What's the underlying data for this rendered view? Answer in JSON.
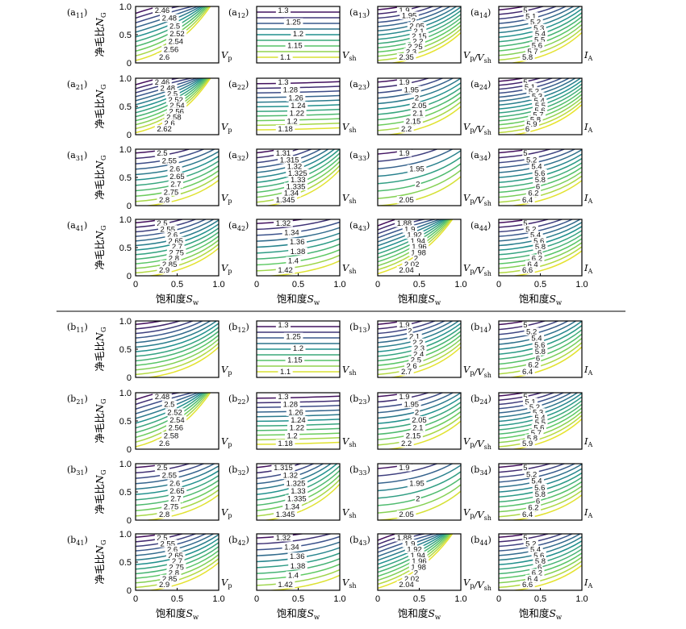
{
  "chart_data": {
    "type": "contour",
    "xlim": [
      0,
      1
    ],
    "ylim": [
      0,
      1
    ],
    "x_ticks": [
      "0",
      "0.5",
      "1.0"
    ],
    "y_ticks": [
      "0",
      "0.5",
      "1.0"
    ],
    "xlabel": "饱和度S_w",
    "ylabel": "净毛比N_G",
    "colormap": [
      "#440154",
      "#3b528b",
      "#21908d",
      "#5dc963",
      "#fde725"
    ],
    "sections": [
      {
        "id": "a",
        "panels": [
          {
            "row": 1,
            "col": 1,
            "label": "(a11)",
            "quantity": "Vp",
            "levels": [
              "2.46",
              "2.48",
              "2.5",
              "2.52",
              "2.54",
              "2.56",
              "2.6"
            ],
            "slope": 0.5,
            "style": "fan"
          },
          {
            "row": 1,
            "col": 2,
            "label": "(a12)",
            "quantity": "Vsh",
            "levels": [
              "1.3",
              "1.25",
              "1.2",
              "1.15",
              "1.1"
            ],
            "slope": 0.0,
            "style": "flat"
          },
          {
            "row": 1,
            "col": 3,
            "label": "(a13)",
            "quantity": "Vp/Vsh",
            "levels": [
              "1.9",
              "1.95",
              "2",
              "2.05",
              "2.1",
              "2.15",
              "2.2",
              "2.25",
              "2.3",
              "2.35"
            ],
            "slope": 0.6,
            "style": "curve"
          },
          {
            "row": 1,
            "col": 4,
            "label": "(a14)",
            "quantity": "IA",
            "levels": [
              "5",
              "5.1",
              "5.2",
              "5.3",
              "5.4",
              "5.5",
              "5.6",
              "5.7",
              "5.8"
            ],
            "slope": 0.6,
            "style": "curve"
          },
          {
            "row": 2,
            "col": 1,
            "label": "(a21)",
            "quantity": "Vp",
            "levels": [
              "2.46",
              "2.48",
              "2.5",
              "2.52",
              "2.54",
              "2.56",
              "2.58",
              "2.6",
              "2.62"
            ],
            "slope": 0.45,
            "style": "fan"
          },
          {
            "row": 2,
            "col": 2,
            "label": "(a22)",
            "quantity": "Vsh",
            "levels": [
              "1.3",
              "1.28",
              "1.26",
              "1.24",
              "1.22",
              "1.2",
              "1.18"
            ],
            "slope": 0.15,
            "style": "flat"
          },
          {
            "row": 2,
            "col": 3,
            "label": "(a23)",
            "quantity": "Vp/Vsh",
            "levels": [
              "1.9",
              "1.95",
              "2",
              "2.05",
              "2.1",
              "2.15",
              "2.2"
            ],
            "slope": 0.55,
            "style": "curve"
          },
          {
            "row": 2,
            "col": 4,
            "label": "(a24)",
            "quantity": "IA",
            "levels": [
              "5",
              "5.1",
              "5.2",
              "5.3",
              "5.4",
              "5.5",
              "5.6",
              "5.7",
              "5.8",
              "5.9",
              "6"
            ],
            "slope": 0.6,
            "style": "curve"
          },
          {
            "row": 3,
            "col": 1,
            "label": "(a31)",
            "quantity": "Vp",
            "levels": [
              "2.5",
              "2.55",
              "2.6",
              "2.65",
              "2.7",
              "2.75",
              "2.8"
            ],
            "slope": 0.5,
            "style": "curve"
          },
          {
            "row": 3,
            "col": 2,
            "label": "(a32)",
            "quantity": "Vsh",
            "levels": [
              "1.31",
              "1.315",
              "1.32",
              "1.325",
              "1.33",
              "1.335",
              "1.34",
              "1.345"
            ],
            "slope": 0.7,
            "style": "curve"
          },
          {
            "row": 3,
            "col": 3,
            "label": "(a33)",
            "quantity": "Vp/Vsh",
            "levels": [
              "1.9",
              "1.95",
              "2",
              "2.05"
            ],
            "slope": 0.55,
            "style": "curve"
          },
          {
            "row": 3,
            "col": 4,
            "label": "(a34)",
            "quantity": "IA",
            "levels": [
              "5",
              "5.2",
              "5.4",
              "5.6",
              "5.8",
              "6",
              "6.2",
              "6.4"
            ],
            "slope": 0.5,
            "style": "curve"
          },
          {
            "row": 4,
            "col": 1,
            "label": "(a41)",
            "quantity": "Vp",
            "levels": [
              "2.5",
              "2.55",
              "2.6",
              "2.65",
              "2.7",
              "2.75",
              "2.8",
              "2.85",
              "2.9"
            ],
            "slope": 0.55,
            "style": "curve"
          },
          {
            "row": 4,
            "col": 2,
            "label": "(a42)",
            "quantity": "Vsh",
            "levels": [
              "1.32",
              "1.34",
              "1.36",
              "1.38",
              "1.4",
              "1.42"
            ],
            "slope": 0.3,
            "style": "curve"
          },
          {
            "row": 4,
            "col": 3,
            "label": "(a43)",
            "quantity": "Vp/Vsh",
            "levels": [
              "1.88",
              "1.9",
              "1.92",
              "1.94",
              "1.96",
              "1.98",
              "2",
              "2.02",
              "2.04"
            ],
            "slope": 0.6,
            "style": "fan"
          },
          {
            "row": 4,
            "col": 4,
            "label": "(a44)",
            "quantity": "IA",
            "levels": [
              "5",
              "5.2",
              "5.4",
              "5.6",
              "5.8",
              "6",
              "6.2",
              "6.4",
              "6.6"
            ],
            "slope": 0.5,
            "style": "curve"
          }
        ]
      },
      {
        "id": "b",
        "panels": [
          {
            "row": 1,
            "col": 1,
            "label": "(b11)",
            "quantity": "Vp",
            "levels": [],
            "slope": 0.6,
            "style": "curve"
          },
          {
            "row": 1,
            "col": 2,
            "label": "(b12)",
            "quantity": "Vsh",
            "levels": [
              "1.3",
              "1.25",
              "1.2",
              "1.15",
              "1.1"
            ],
            "slope": 0.0,
            "style": "flat"
          },
          {
            "row": 1,
            "col": 3,
            "label": "(b13)",
            "quantity": "Vp/Vsh",
            "levels": [
              "1.9",
              "2",
              "2.1",
              "2.2",
              "2.3",
              "2.4",
              "2.5",
              "2.6",
              "2.7"
            ],
            "slope": 0.6,
            "style": "curve"
          },
          {
            "row": 1,
            "col": 4,
            "label": "(b14)",
            "quantity": "IA",
            "levels": [
              "5",
              "5.2",
              "5.4",
              "5.6",
              "5.8",
              "6",
              "6.2",
              "6.4"
            ],
            "slope": 0.6,
            "style": "curve"
          },
          {
            "row": 2,
            "col": 1,
            "label": "(b21)",
            "quantity": "Vp",
            "levels": [
              "2.48",
              "2.5",
              "2.52",
              "2.54",
              "2.56",
              "2.58",
              "2.6"
            ],
            "slope": 0.5,
            "style": "fan"
          },
          {
            "row": 2,
            "col": 2,
            "label": "(b22)",
            "quantity": "Vsh",
            "levels": [
              "1.3",
              "1.28",
              "1.26",
              "1.24",
              "1.22",
              "1.2",
              "1.18"
            ],
            "slope": 0.15,
            "style": "flat"
          },
          {
            "row": 2,
            "col": 3,
            "label": "(b23)",
            "quantity": "Vp/Vsh",
            "levels": [
              "1.9",
              "1.95",
              "2",
              "2.05",
              "2.1",
              "2.15",
              "2.2"
            ],
            "slope": 0.55,
            "style": "curve"
          },
          {
            "row": 2,
            "col": 4,
            "label": "(b24)",
            "quantity": "IA",
            "levels": [
              "5",
              "5.1",
              "5.2",
              "5.3",
              "5.4",
              "5.5",
              "5.6",
              "5.7",
              "5.8",
              "5.9"
            ],
            "slope": 0.6,
            "style": "curve"
          },
          {
            "row": 3,
            "col": 1,
            "label": "(b31)",
            "quantity": "Vp",
            "levels": [
              "2.5",
              "2.55",
              "2.6",
              "2.65",
              "2.7",
              "2.75",
              "2.8"
            ],
            "slope": 0.5,
            "style": "curve"
          },
          {
            "row": 3,
            "col": 2,
            "label": "(b32)",
            "quantity": "Vsh",
            "levels": [
              "1.315",
              "1.32",
              "1.325",
              "1.33",
              "1.335",
              "1.34",
              "1.345"
            ],
            "slope": 0.7,
            "style": "curve"
          },
          {
            "row": 3,
            "col": 3,
            "label": "(b33)",
            "quantity": "Vp/Vsh",
            "levels": [
              "1.9",
              "1.95",
              "2",
              "2.05"
            ],
            "slope": 0.55,
            "style": "curve"
          },
          {
            "row": 3,
            "col": 4,
            "label": "(b34)",
            "quantity": "IA",
            "levels": [
              "5",
              "5.2",
              "5.4",
              "5.6",
              "5.8",
              "6",
              "6.2",
              "6.4"
            ],
            "slope": 0.5,
            "style": "curve"
          },
          {
            "row": 4,
            "col": 1,
            "label": "(b41)",
            "quantity": "Vp",
            "levels": [
              "2.5",
              "2.55",
              "2.6",
              "2.65",
              "2.7",
              "2.75",
              "2.8",
              "2.85",
              "2.9"
            ],
            "slope": 0.55,
            "style": "curve"
          },
          {
            "row": 4,
            "col": 2,
            "label": "(b42)",
            "quantity": "Vsh",
            "levels": [
              "1.32",
              "1.34",
              "1.36",
              "1.38",
              "1.4",
              "1.42"
            ],
            "slope": 0.3,
            "style": "curve"
          },
          {
            "row": 4,
            "col": 3,
            "label": "(b43)",
            "quantity": "Vp/Vsh",
            "levels": [
              "1.88",
              "1.9",
              "1.92",
              "1.94",
              "1.96",
              "1.98",
              "2",
              "2.02",
              "2.04"
            ],
            "slope": 0.6,
            "style": "fan"
          },
          {
            "row": 4,
            "col": 4,
            "label": "(b44)",
            "quantity": "IA",
            "levels": [
              "5",
              "5.2",
              "5.4",
              "5.6",
              "5.8",
              "6",
              "6.2",
              "6.4",
              "6.6"
            ],
            "slope": 0.5,
            "style": "curve"
          }
        ]
      }
    ]
  }
}
